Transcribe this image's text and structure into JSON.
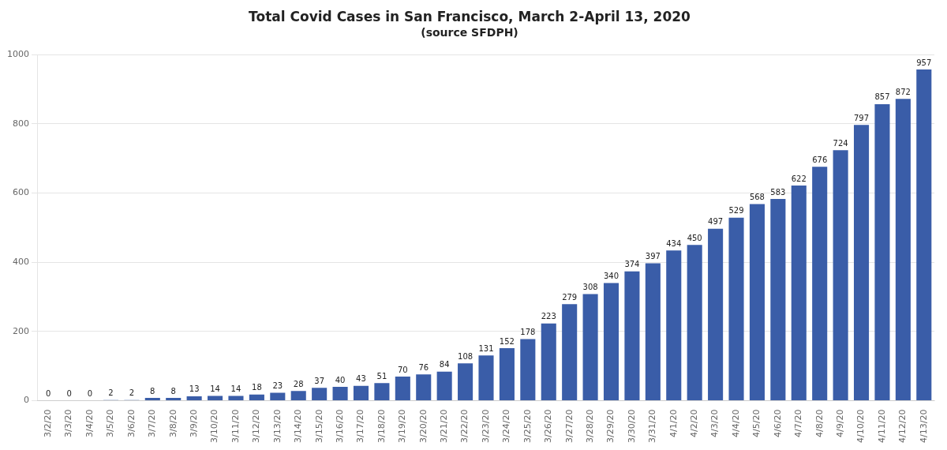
{
  "chart_data": {
    "type": "bar",
    "title": "Total Covid Cases in San Francisco, March 2-April 13, 2020",
    "subtitle": "(source SFDPH)",
    "categories": [
      "3/2/20",
      "3/3/20",
      "3/4/20",
      "3/5/20",
      "3/6/20",
      "3/7/20",
      "3/8/20",
      "3/9/20",
      "3/10/20",
      "3/11/20",
      "3/12/20",
      "3/13/20",
      "3/14/20",
      "3/15/20",
      "3/16/20",
      "3/17/20",
      "3/18/20",
      "3/19/20",
      "3/20/20",
      "3/21/20",
      "3/22/20",
      "3/23/20",
      "3/24/20",
      "3/25/20",
      "3/26/20",
      "3/27/20",
      "3/28/20",
      "3/29/20",
      "3/30/20",
      "3/31/20",
      "4/1/20",
      "4/2/20",
      "4/3/20",
      "4/4/20",
      "4/5/20",
      "4/6/20",
      "4/7/20",
      "4/8/20",
      "4/9/20",
      "4/10/20",
      "4/11/20",
      "4/12/20",
      "4/13/20"
    ],
    "values": [
      0,
      0,
      0,
      2,
      2,
      8,
      8,
      13,
      14,
      14,
      18,
      23,
      28,
      37,
      40,
      43,
      51,
      70,
      76,
      84,
      108,
      131,
      152,
      178,
      223,
      279,
      308,
      340,
      374,
      397,
      434,
      450,
      497,
      529,
      568,
      583,
      622,
      676,
      724,
      797,
      857,
      872,
      957
    ],
    "color": "#3a5da8",
    "ylim": [
      0,
      1000
    ],
    "yticks": [
      0,
      200,
      400,
      600,
      800,
      1000
    ],
    "grid": true,
    "data_labels": true
  }
}
